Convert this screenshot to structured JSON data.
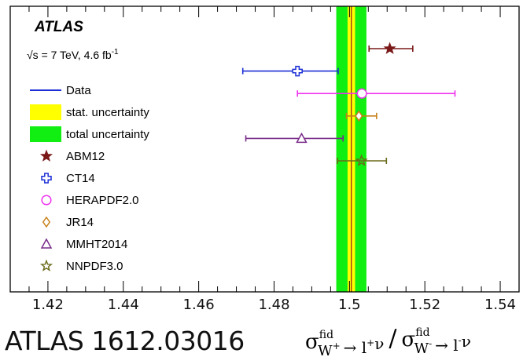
{
  "chart_data": {
    "type": "scatter",
    "title": "ATLAS",
    "subtitle": "√s = 7 TeV, 4.6 fb",
    "subtitle_sup": "-1",
    "xlim": [
      1.41,
      1.545
    ],
    "xticks": [
      "1.42",
      "1.44",
      "1.46",
      "1.48",
      "1.5",
      "1.52",
      "1.54"
    ],
    "xlabel": {
      "sigma1": "σ",
      "fid1": "fid",
      "sub1": "W",
      "sub1_sup": "+",
      "arrow1": "→ l",
      "arrow1_sup": "+",
      "nu1": "ν",
      "slash": "/",
      "sigma2": "σ",
      "fid2": "fid",
      "sub2": "W",
      "sub2_sup": "-",
      "arrow2": "→ l",
      "arrow2_sup": "-",
      "nu2": "ν"
    },
    "data_band": {
      "value": 1.5005,
      "stat_unc": [
        1.4995,
        1.5015
      ],
      "total_unc": [
        1.4965,
        1.5045
      ],
      "line_color": "#1c2fd6",
      "stat_color": "#ffff00",
      "total_color": "#11ee11"
    },
    "legend": [
      {
        "label": "Data",
        "kind": "line",
        "color": "#1c2fd6"
      },
      {
        "label": "stat. uncertainty",
        "kind": "box",
        "color": "#ffff00"
      },
      {
        "label": "total uncertainty",
        "kind": "box",
        "color": "#11ee11"
      }
    ],
    "series": [
      {
        "name": "ABM12",
        "marker": "star-filled",
        "color": "#7a1818",
        "value": 1.5107,
        "err_lo": 1.5052,
        "err_hi": 1.5168
      },
      {
        "name": "CT14",
        "marker": "cross-open",
        "color": "#1c2fd6",
        "value": 1.4862,
        "err_lo": 1.4717,
        "err_hi": 1.497
      },
      {
        "name": "HERAPDF2.0",
        "marker": "circle-open",
        "color": "#ee33ee",
        "value": 1.5033,
        "err_lo": 1.4862,
        "err_hi": 1.528
      },
      {
        "name": "JR14",
        "marker": "diamond-open",
        "color": "#c68018",
        "value": 1.5025,
        "err_lo": 1.4992,
        "err_hi": 1.5072
      },
      {
        "name": "MMHT2014",
        "marker": "triangle-open",
        "color": "#7a2d8a",
        "value": 1.4873,
        "err_lo": 1.4725,
        "err_hi": 1.4983
      },
      {
        "name": "NNPDF3.0",
        "marker": "star-open",
        "color": "#6b6b1c",
        "value": 1.5032,
        "err_lo": 1.4968,
        "err_hi": 1.5098
      }
    ]
  },
  "source": "ATLAS 1612.03016"
}
